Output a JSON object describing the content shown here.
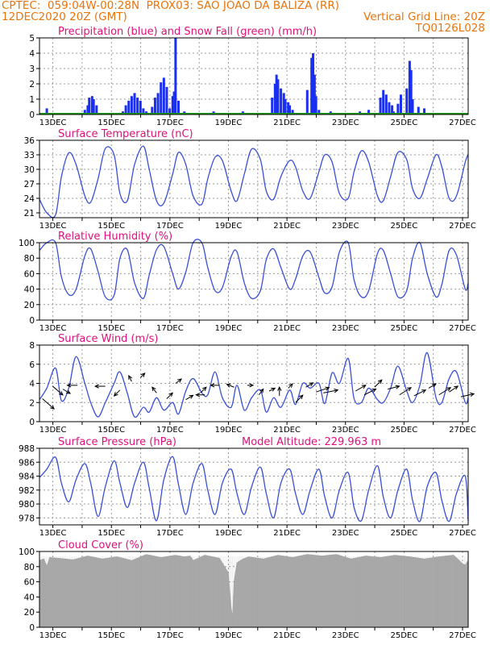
{
  "header": {
    "line1_left": "CPTEC:  059:04W-00:28N  PROX03: SAO JOAO DA BALIZA (RR)",
    "line2_left": "12DEC2020 20Z (GMT)",
    "line2_right": "Vertical Grid Line: 20Z",
    "line3_right": "TQ0126L028"
  },
  "colors": {
    "header": "#e8740c",
    "title": "#e0107a",
    "precip": "#1a2ff0",
    "snow": "#1aa01a",
    "line": "#3a4fd8",
    "cloud": "#a9a9a9",
    "arrow": "#000000"
  },
  "x_axis": {
    "labels": [
      "13DEC",
      "15DEC",
      "17DEC",
      "19DEC",
      "21DEC",
      "23DEC",
      "25DEC",
      "27DEC"
    ],
    "range_days": [
      12.35,
      27.0
    ]
  },
  "chart_data": [
    {
      "id": "precip",
      "type": "bar",
      "title": "Precipitation (blue) and Snow Fall (green) (mm/h)",
      "ylim": [
        0,
        5
      ],
      "yticks": [
        "0",
        "1",
        "2",
        "3",
        "4",
        "5"
      ],
      "series": [
        {
          "name": "Precipitation",
          "x": [
            12.6,
            13.9,
            14.0,
            14.05,
            14.15,
            14.2,
            14.3,
            14.5,
            15.2,
            15.3,
            15.4,
            15.5,
            15.6,
            15.7,
            15.8,
            15.9,
            16.0,
            16.2,
            16.3,
            16.4,
            16.5,
            16.6,
            16.7,
            16.8,
            16.9,
            16.95,
            17.0,
            17.1,
            17.3,
            17.5,
            18.0,
            18.3,
            18.6,
            19.0,
            19.3,
            19.6,
            20.3,
            20.4,
            20.45,
            20.5,
            20.6,
            20.7,
            20.75,
            20.85,
            20.9,
            21.0,
            21.1,
            21.3,
            21.5,
            21.65,
            21.7,
            21.75,
            21.8,
            21.9,
            22.3,
            22.6,
            22.9,
            23.3,
            23.6,
            24.0,
            24.1,
            24.2,
            24.3,
            24.4,
            24.45,
            24.6,
            24.7,
            24.9,
            25.0,
            25.05,
            25.1,
            25.3,
            25.5
          ],
          "values": [
            0.4,
            0.3,
            0.6,
            1.1,
            1.2,
            1.0,
            0.6,
            0.1,
            0.2,
            0.6,
            0.9,
            1.2,
            1.4,
            1.1,
            0.9,
            0.4,
            0.2,
            0.5,
            1.1,
            1.4,
            2.1,
            2.4,
            1.8,
            0.4,
            1.2,
            1.5,
            5.0,
            0.9,
            0.2,
            0.1,
            0.1,
            0.2,
            0.1,
            0.1,
            0.2,
            0.1,
            1.1,
            2.0,
            2.6,
            2.3,
            1.7,
            1.4,
            1.0,
            0.8,
            0.6,
            0.3,
            0.1,
            0.1,
            1.6,
            3.7,
            4.0,
            2.6,
            1.2,
            0.3,
            0.2,
            0.1,
            0.1,
            0.2,
            0.3,
            1.1,
            1.6,
            1.3,
            0.8,
            0.6,
            0.2,
            0.7,
            1.3,
            1.7,
            3.5,
            2.9,
            1.0,
            0.5,
            0.4
          ]
        },
        {
          "name": "Snow Fall",
          "x": [],
          "values": []
        }
      ]
    },
    {
      "id": "temp",
      "type": "line",
      "title": "Surface Temperature (nC)",
      "ylim": [
        20,
        36
      ],
      "yticks": [
        "21",
        "24",
        "27",
        "30",
        "33",
        "36"
      ],
      "ytick_values": [
        21,
        24,
        27,
        30,
        33,
        36
      ],
      "series": [
        {
          "x": [
            12.35,
            12.6,
            12.9,
            13.1,
            13.35,
            13.6,
            13.9,
            14.1,
            14.35,
            14.6,
            14.9,
            15.1,
            15.35,
            15.6,
            15.9,
            16.1,
            16.35,
            16.6,
            16.9,
            17.1,
            17.35,
            17.6,
            17.9,
            18.1,
            18.35,
            18.6,
            18.9,
            19.1,
            19.35,
            19.6,
            19.9,
            20.1,
            20.35,
            20.6,
            20.9,
            21.1,
            21.35,
            21.6,
            21.9,
            22.1,
            22.35,
            22.6,
            22.9,
            23.1,
            23.35,
            23.6,
            23.9,
            24.1,
            24.35,
            24.6,
            24.9,
            25.1,
            25.35,
            25.6,
            25.9,
            26.1,
            26.35,
            26.6,
            26.9,
            27.0
          ],
          "values": [
            23.8,
            21.0,
            20.6,
            28.5,
            33.4,
            31.0,
            24.5,
            23.2,
            28.0,
            34.3,
            33.0,
            25.0,
            23.5,
            31.0,
            34.8,
            30.0,
            23.5,
            23.0,
            29.0,
            33.5,
            31.0,
            24.5,
            22.8,
            28.0,
            32.5,
            31.8,
            25.5,
            23.5,
            29.0,
            34.2,
            32.0,
            25.5,
            23.8,
            28.5,
            31.8,
            30.5,
            25.5,
            24.0,
            29.5,
            33.0,
            31.5,
            25.0,
            24.0,
            29.5,
            33.8,
            31.5,
            24.5,
            23.5,
            28.5,
            33.5,
            32.0,
            26.0,
            24.0,
            28.0,
            33.0,
            30.5,
            24.0,
            24.5,
            31.5,
            33.0
          ]
        }
      ]
    },
    {
      "id": "rh",
      "type": "line",
      "title": "Relative Humidity (%)",
      "ylim": [
        0,
        100
      ],
      "yticks": [
        "0",
        "20",
        "40",
        "60",
        "80",
        "100"
      ],
      "ytick_values": [
        0,
        20,
        40,
        60,
        80,
        100
      ],
      "series": [
        {
          "x": [
            12.35,
            12.6,
            12.9,
            13.1,
            13.35,
            13.6,
            13.9,
            14.1,
            14.35,
            14.6,
            14.9,
            15.1,
            15.35,
            15.6,
            15.9,
            16.1,
            16.35,
            16.6,
            16.9,
            17.1,
            17.35,
            17.6,
            17.9,
            18.1,
            18.35,
            18.6,
            18.9,
            19.1,
            19.35,
            19.6,
            19.9,
            20.1,
            20.35,
            20.6,
            20.9,
            21.1,
            21.35,
            21.6,
            21.9,
            22.1,
            22.35,
            22.6,
            22.9,
            23.1,
            23.35,
            23.6,
            23.9,
            24.1,
            24.35,
            24.6,
            24.9,
            25.1,
            25.35,
            25.6,
            25.9,
            26.1,
            26.35,
            26.6,
            26.9,
            27.0
          ],
          "values": [
            90.0,
            100.0,
            100.0,
            56.0,
            33.0,
            40.0,
            83.0,
            92.0,
            63.0,
            30.0,
            32.0,
            80.0,
            91.0,
            48.0,
            28.0,
            58.0,
            91.0,
            95.0,
            60.0,
            40.0,
            62.0,
            100.0,
            100.0,
            68.0,
            38.0,
            42.0,
            82.0,
            88.0,
            48.0,
            28.0,
            38.0,
            78.0,
            92.0,
            68.0,
            40.0,
            53.0,
            83.0,
            88.0,
            55.0,
            35.0,
            43.0,
            88.0,
            100.0,
            52.0,
            30.0,
            38.0,
            86.0,
            90.0,
            60.0,
            30.0,
            38.0,
            80.0,
            100.0,
            60.0,
            30.0,
            46.0,
            90.0,
            84.0,
            40.0,
            48.0
          ]
        }
      ]
    },
    {
      "id": "wind",
      "type": "line",
      "title": "Surface Wind (m/s)",
      "ylim": [
        0,
        8
      ],
      "yticks": [
        "0",
        "2",
        "4",
        "6",
        "8"
      ],
      "ytick_values": [
        0,
        2,
        4,
        6,
        8
      ],
      "series": [
        {
          "x": [
            12.35,
            12.6,
            12.9,
            13.1,
            13.35,
            13.6,
            13.9,
            14.1,
            14.35,
            14.6,
            14.9,
            15.1,
            15.35,
            15.6,
            15.9,
            16.1,
            16.35,
            16.6,
            16.9,
            17.1,
            17.35,
            17.6,
            17.9,
            18.1,
            18.35,
            18.6,
            18.9,
            19.1,
            19.35,
            19.6,
            19.9,
            20.1,
            20.35,
            20.6,
            20.9,
            21.1,
            21.35,
            21.6,
            21.9,
            22.1,
            22.35,
            22.6,
            22.9,
            23.1,
            23.35,
            23.6,
            23.9,
            24.1,
            24.35,
            24.6,
            24.9,
            25.1,
            25.35,
            25.6,
            25.9,
            26.1,
            26.35,
            26.6,
            26.9,
            27.0
          ],
          "values": [
            2.3,
            3.5,
            5.6,
            2.2,
            3.5,
            6.8,
            4.0,
            2.0,
            0.5,
            2.0,
            4.0,
            5.2,
            3.0,
            0.5,
            1.5,
            1.0,
            2.5,
            1.2,
            2.0,
            0.8,
            3.2,
            4.5,
            3.0,
            2.8,
            5.2,
            2.5,
            1.5,
            3.8,
            1.2,
            2.5,
            3.3,
            1.0,
            2.5,
            1.5,
            3.3,
            1.8,
            4.0,
            3.5,
            4.0,
            1.9,
            5.1,
            4.0,
            6.6,
            2.4,
            2.0,
            3.5,
            2.3,
            2.0,
            3.5,
            5.8,
            3.2,
            2.0,
            3.8,
            7.2,
            2.5,
            2.0,
            4.5,
            5.2,
            2.0,
            2.5
          ]
        }
      ],
      "arrows": [
        [
          12.45,
          2.4,
          0.8,
          -0.7
        ],
        [
          12.8,
          3.7,
          0.7,
          -0.6
        ],
        [
          13.15,
          3.4,
          0.5,
          -0.3
        ],
        [
          13.65,
          3.8,
          -0.7,
          0.0
        ],
        [
          14.6,
          3.7,
          -0.7,
          0.0
        ],
        [
          15.1,
          3.3,
          -0.4,
          -0.4
        ],
        [
          15.5,
          4.2,
          -0.2,
          0.4
        ],
        [
          15.8,
          4.6,
          0.3,
          0.3
        ],
        [
          16.35,
          3.0,
          -0.3,
          0.4
        ],
        [
          16.7,
          2.4,
          0.4,
          0.4
        ],
        [
          17.0,
          4.0,
          0.4,
          0.3
        ],
        [
          17.35,
          2.3,
          0.5,
          0.3
        ],
        [
          17.85,
          3.0,
          0.4,
          0.4
        ],
        [
          18.0,
          2.8,
          -0.6,
          0.0
        ],
        [
          18.5,
          3.8,
          -0.6,
          0.0
        ],
        [
          19.0,
          3.6,
          -0.5,
          0.2
        ],
        [
          19.45,
          3.8,
          0.4,
          0.0
        ],
        [
          19.85,
          2.8,
          0.3,
          0.4
        ],
        [
          20.2,
          3.2,
          0.4,
          0.2
        ],
        [
          20.55,
          2.7,
          0.0,
          0.6
        ],
        [
          20.85,
          3.5,
          0.3,
          0.3
        ],
        [
          21.1,
          2.0,
          0.5,
          0.5
        ],
        [
          21.45,
          3.6,
          0.5,
          0.3
        ],
        [
          21.8,
          3.1,
          0.9,
          0.3
        ],
        [
          22.05,
          3.0,
          1.0,
          0.2
        ],
        [
          23.15,
          3.2,
          0.7,
          0.4
        ],
        [
          23.45,
          2.8,
          0.8,
          0.4
        ],
        [
          23.8,
          3.6,
          0.5,
          0.5
        ],
        [
          24.25,
          3.4,
          0.8,
          0.2
        ],
        [
          24.65,
          2.8,
          0.8,
          0.5
        ],
        [
          25.15,
          2.7,
          0.8,
          0.4
        ],
        [
          25.65,
          3.5,
          0.5,
          0.3
        ],
        [
          26.0,
          2.8,
          0.8,
          0.5
        ],
        [
          26.35,
          3.1,
          0.6,
          0.4
        ],
        [
          26.75,
          2.6,
          0.9,
          0.2
        ]
      ]
    },
    {
      "id": "press",
      "type": "line",
      "title": "Surface Pressure (hPa)",
      "subtitle": "Model Altitude: 229.963 m",
      "ylim": [
        977,
        988
      ],
      "yticks": [
        "978",
        "980",
        "982",
        "984",
        "986",
        "988"
      ],
      "ytick_values": [
        978,
        980,
        982,
        984,
        986,
        988
      ],
      "series": [
        {
          "x": [
            12.35,
            12.6,
            12.9,
            13.1,
            13.35,
            13.6,
            13.9,
            14.1,
            14.35,
            14.6,
            14.9,
            15.1,
            15.35,
            15.6,
            15.9,
            16.1,
            16.35,
            16.6,
            16.9,
            17.1,
            17.35,
            17.6,
            17.9,
            18.1,
            18.35,
            18.6,
            18.9,
            19.1,
            19.35,
            19.6,
            19.9,
            20.1,
            20.35,
            20.6,
            20.9,
            21.1,
            21.35,
            21.6,
            21.9,
            22.1,
            22.35,
            22.6,
            22.9,
            23.1,
            23.35,
            23.6,
            23.9,
            24.1,
            24.35,
            24.6,
            24.9,
            25.1,
            25.35,
            25.6,
            25.9,
            26.1,
            26.35,
            26.6,
            26.9,
            27.0
          ],
          "values": [
            983.8,
            985.0,
            986.7,
            983.0,
            980.3,
            983.5,
            985.8,
            983.0,
            978.2,
            982.5,
            986.2,
            983.0,
            979.5,
            983.0,
            986.0,
            982.3,
            977.6,
            983.5,
            986.8,
            982.8,
            978.5,
            983.0,
            985.8,
            982.0,
            978.5,
            983.0,
            985.0,
            981.5,
            978.5,
            982.5,
            985.3,
            981.5,
            978.0,
            983.0,
            985.0,
            981.5,
            978.5,
            982.0,
            985.0,
            981.0,
            978.0,
            982.0,
            984.5,
            979.5,
            977.6,
            982.0,
            985.5,
            981.0,
            978.0,
            982.0,
            985.0,
            980.5,
            977.5,
            982.5,
            984.5,
            980.5,
            977.5,
            981.5,
            984.0,
            977.6
          ]
        }
      ]
    },
    {
      "id": "cloud",
      "type": "area",
      "title": "Cloud Cover (%)",
      "ylim": [
        0,
        100
      ],
      "yticks": [
        "0",
        "20",
        "40",
        "60",
        "80",
        "100"
      ],
      "ytick_values": [
        0,
        20,
        40,
        60,
        80,
        100
      ],
      "series": [
        {
          "x": [
            12.35,
            12.5,
            12.6,
            12.7,
            13.0,
            13.5,
            14.0,
            14.5,
            15.0,
            15.5,
            16.0,
            16.5,
            17.0,
            17.3,
            17.5,
            17.6,
            18.0,
            18.5,
            18.8,
            18.9,
            18.95,
            19.0,
            19.1,
            19.3,
            19.5,
            20.0,
            20.5,
            21.0,
            21.5,
            22.0,
            22.5,
            23.0,
            23.5,
            24.0,
            24.5,
            25.0,
            25.5,
            26.0,
            26.5,
            26.8,
            26.9,
            27.0
          ],
          "values": [
            88,
            90,
            80,
            92,
            91,
            89,
            94,
            90,
            93,
            88,
            96,
            92,
            95,
            93,
            94,
            88,
            95,
            91,
            72,
            25,
            12,
            60,
            85,
            90,
            93,
            90,
            95,
            92,
            96,
            94,
            96,
            90,
            94,
            92,
            95,
            93,
            90,
            93,
            95,
            84,
            82,
            88
          ]
        }
      ]
    }
  ]
}
